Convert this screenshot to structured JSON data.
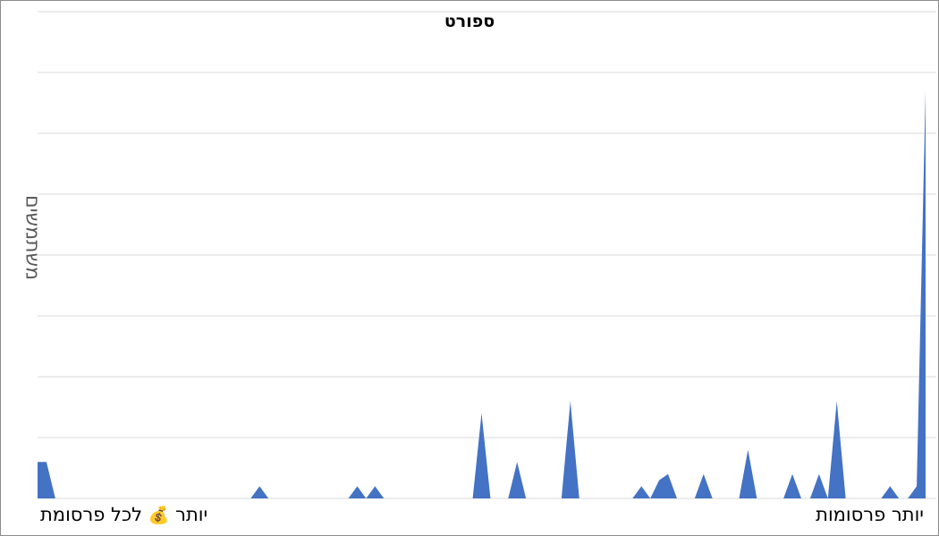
{
  "chart_data": {
    "type": "area",
    "title": "ספורט",
    "ylabel": "משתמשים",
    "xlabel_right": "יותר פרסומות",
    "xlabel_left_before": "יותר",
    "xlabel_left_icon": "money-bag-icon",
    "xlabel_left_after": "לכל פרסומת",
    "ylim": [
      0,
      8
    ],
    "gridlines": 8,
    "grid": true,
    "color": "#4472C4",
    "x_count": 101,
    "values": [
      0.6,
      0.6,
      0,
      0,
      0,
      0,
      0,
      0,
      0,
      0,
      0,
      0,
      0,
      0,
      0,
      0,
      0,
      0,
      0,
      0,
      0,
      0,
      0,
      0,
      0,
      0.2,
      0,
      0,
      0,
      0,
      0,
      0,
      0,
      0,
      0,
      0,
      0.2,
      0,
      0.2,
      0,
      0,
      0,
      0,
      0,
      0,
      0,
      0,
      0,
      0,
      0,
      1.4,
      0,
      0,
      0,
      0.6,
      0,
      0,
      0,
      0,
      0,
      1.6,
      0,
      0,
      0,
      0,
      0,
      0,
      0,
      0.2,
      0,
      0.3,
      0.4,
      0,
      0,
      0,
      0.4,
      0,
      0,
      0,
      0,
      0.8,
      0,
      0,
      0,
      0,
      0.4,
      0,
      0,
      0.4,
      0,
      1.6,
      0,
      0,
      0,
      0,
      0,
      0.2,
      0,
      0,
      0.2,
      6.7
    ]
  }
}
